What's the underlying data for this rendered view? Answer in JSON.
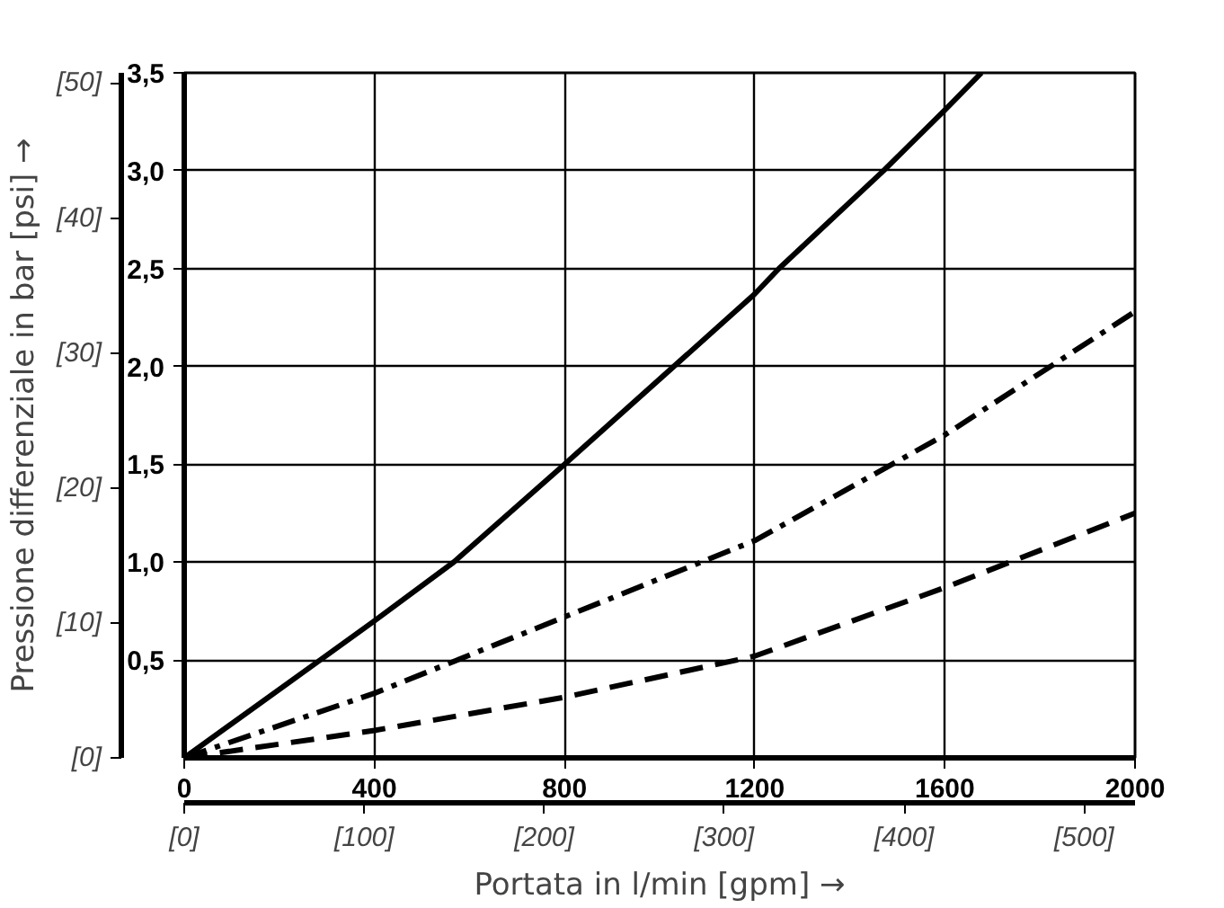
{
  "chart_data": {
    "type": "line",
    "xlabel": "Portata in l/min [gpm] →",
    "y2label": "Pressione differenziale in bar [psi] →",
    "xlim": [
      0,
      2000
    ],
    "xticks": [
      0,
      400,
      800,
      1200,
      1600,
      2000
    ],
    "ylim": [
      0,
      3.5
    ],
    "yticks": [
      {
        "value": 0.5,
        "label": "0,5"
      },
      {
        "value": 1.0,
        "label": "1,0"
      },
      {
        "value": 1.5,
        "label": "1,5"
      },
      {
        "value": 2.0,
        "label": "2,0"
      },
      {
        "value": 2.5,
        "label": "2,5"
      },
      {
        "value": 3.0,
        "label": "3,0"
      },
      {
        "value": 3.5,
        "label": "3,5"
      }
    ],
    "x2lim": [
      0,
      528.3
    ],
    "x2ticks": [
      {
        "value": 0,
        "label": "[0]"
      },
      {
        "value": 100,
        "label": "[100]"
      },
      {
        "value": 200,
        "label": "[200]"
      },
      {
        "value": 300,
        "label": "[300]"
      },
      {
        "value": 400,
        "label": "[400]"
      },
      {
        "value": 500,
        "label": "[500]"
      }
    ],
    "y2lim": [
      0,
      50.76
    ],
    "y2ticks": [
      {
        "value": 0,
        "label": "[0]"
      },
      {
        "value": 10,
        "label": "[10]"
      },
      {
        "value": 20,
        "label": "[20]"
      },
      {
        "value": 30,
        "label": "[30]"
      },
      {
        "value": 40,
        "label": "[40]"
      },
      {
        "value": 50,
        "label": "[50]"
      }
    ],
    "grid": true,
    "marker": "none",
    "series": [
      {
        "color": "#000000",
        "line_style": "solid",
        "x": [
          0,
          286,
          400,
          567,
          800,
          1200,
          1251,
          1471,
          1600,
          1677
        ],
        "values": [
          0,
          0.5,
          0.7,
          1.0,
          1.5,
          2.37,
          2.5,
          3.0,
          3.31,
          3.5
        ]
      },
      {
        "color": "#000000",
        "line_style": "dashdot",
        "x": [
          0,
          400,
          800,
          1200,
          1600,
          2000
        ],
        "values": [
          0,
          0.33,
          0.72,
          1.11,
          1.65,
          2.28
        ]
      },
      {
        "color": "#000000",
        "line_style": "dashed",
        "x": [
          0,
          400,
          800,
          1200,
          1600,
          2000
        ],
        "values": [
          0,
          0.14,
          0.31,
          0.52,
          0.87,
          1.25
        ]
      }
    ]
  }
}
